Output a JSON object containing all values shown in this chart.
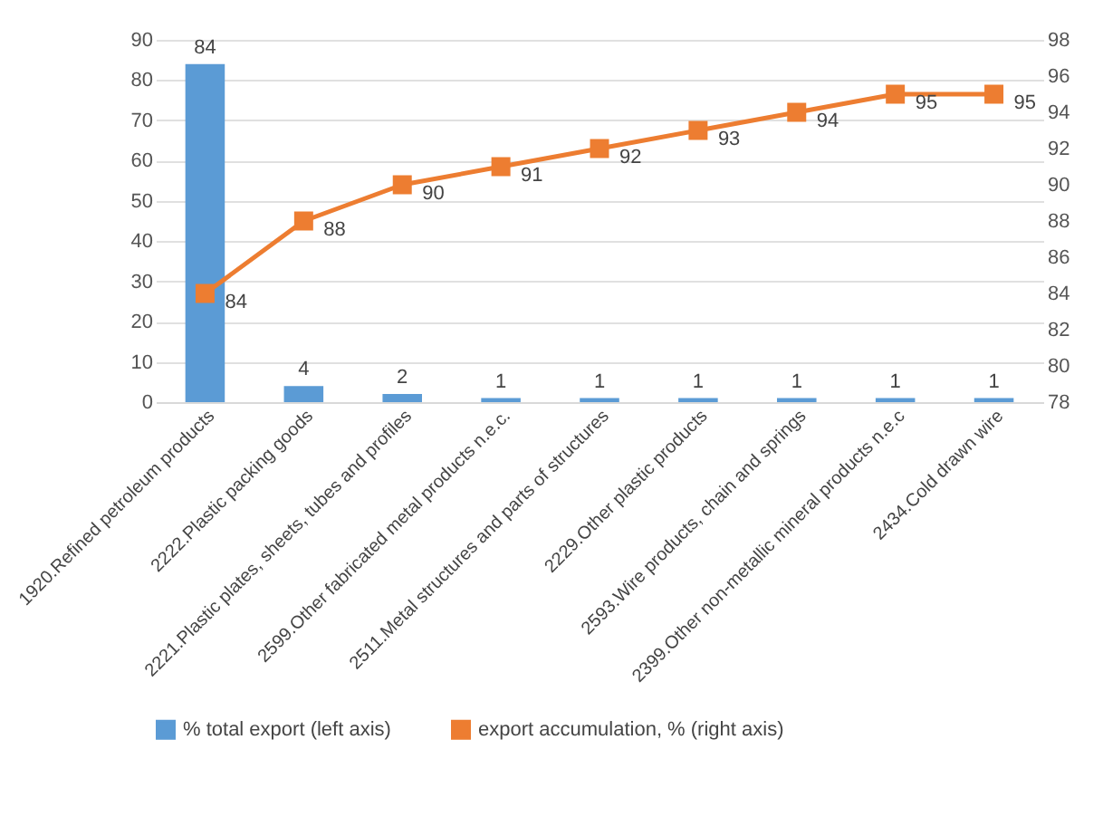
{
  "chart_data": {
    "type": "bar",
    "categories": [
      "1920.Refined petroleum products",
      "2222.Plastic packing goods",
      "2221.Plastic plates, sheets, tubes and profiles",
      "2599.Other fabricated metal products n.e.c.",
      "2511.Metal structures and parts of structures",
      "2229.Other plastic products",
      "2593.Wire products, chain and springs",
      "2399.Other non-metallic mineral products n.e.c",
      "2434.Cold drawn wire"
    ],
    "series": [
      {
        "name": "% total export (left axis)",
        "color": "#5b9bd5",
        "values": [
          84,
          4,
          2,
          1,
          1,
          1,
          1,
          1,
          1
        ]
      },
      {
        "name": "export accumulation, % (right axis)",
        "type": "line",
        "axis": "y2",
        "color": "#ed7d31",
        "values": [
          84,
          88,
          90,
          91,
          92,
          93,
          94,
          95,
          95
        ]
      }
    ],
    "ylim": [
      0,
      90
    ],
    "yticks": [
      0,
      10,
      20,
      30,
      40,
      50,
      60,
      70,
      80,
      90
    ],
    "y2lim": [
      78,
      98
    ],
    "y2ticks": [
      78,
      80,
      82,
      84,
      86,
      88,
      90,
      92,
      94,
      96,
      98
    ],
    "data_labels": true,
    "grid": "y",
    "legend": "bottom",
    "marker": "square",
    "line_style": "solid"
  }
}
